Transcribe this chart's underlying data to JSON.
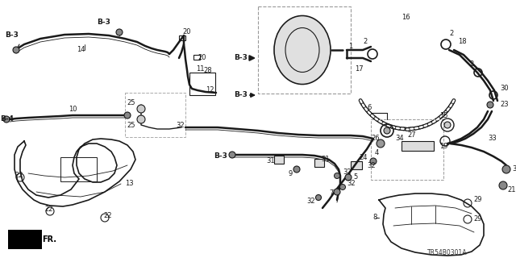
{
  "bg_color": "#ffffff",
  "line_color": "#1a1a1a",
  "diagram_id": "TR54B0301A",
  "figsize": [
    6.4,
    3.2
  ],
  "dpi": 100
}
